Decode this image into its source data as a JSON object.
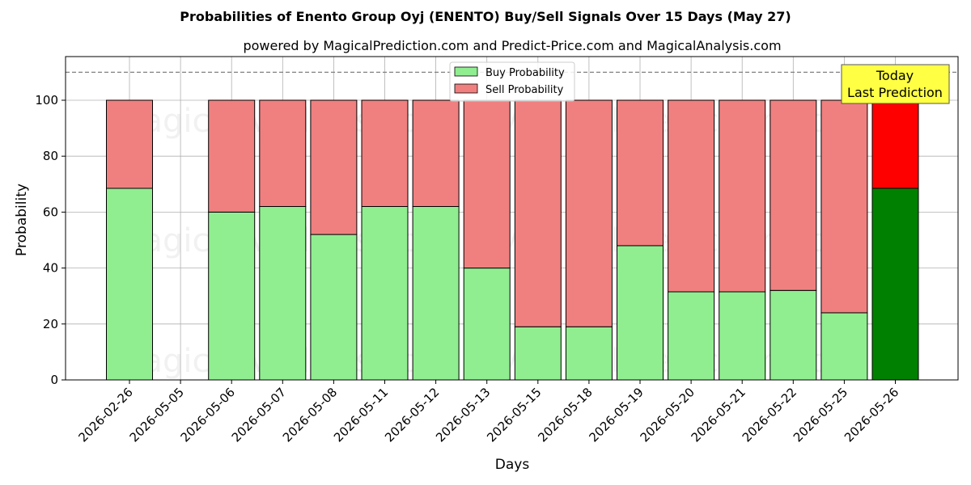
{
  "chart_data": {
    "type": "bar",
    "stacked": true,
    "title": "Probabilities of Enento Group Oyj (ENENTO) Buy/Sell Signals Over 15 Days (May 27)",
    "subtitle": "powered by MagicalPrediction.com and Predict-Price.com and MagicalAnalysis.com",
    "xlabel": "Days",
    "ylabel": "Probability",
    "ylim": [
      0,
      115
    ],
    "yticks": [
      0,
      20,
      40,
      60,
      80,
      100
    ],
    "grid": true,
    "legend_position": "top-center",
    "reference_line": 110,
    "categories": [
      "2026-02-26",
      "2026-05-05",
      "2026-05-06",
      "2026-05-07",
      "2026-05-08",
      "2026-05-11",
      "2026-05-12",
      "2026-05-13",
      "2026-05-15",
      "2026-05-18",
      "2026-05-19",
      "2026-05-20",
      "2026-05-21",
      "2026-05-22",
      "2026-05-25",
      "2026-05-26"
    ],
    "series": [
      {
        "name": "Buy Probability",
        "color": "#90ee90",
        "values": [
          68.5,
          null,
          60,
          62,
          52,
          62,
          62,
          40,
          19,
          19,
          48,
          31.5,
          31.5,
          32,
          24,
          68.5
        ]
      },
      {
        "name": "Sell Probability",
        "color": "#f08080",
        "values": [
          31.5,
          null,
          40,
          38,
          48,
          38,
          38,
          60,
          81,
          81,
          52,
          68.5,
          68.5,
          68,
          76,
          31.5
        ]
      }
    ],
    "highlight": {
      "index": 15,
      "buy_color": "#008000",
      "sell_color": "#ff0000"
    },
    "annotation": {
      "line1": "Today",
      "line2": "Last Prediction",
      "background": "#ffff44"
    },
    "watermarks": [
      "MagicalAnalysis.com",
      "MagicalPrediction.com"
    ]
  }
}
